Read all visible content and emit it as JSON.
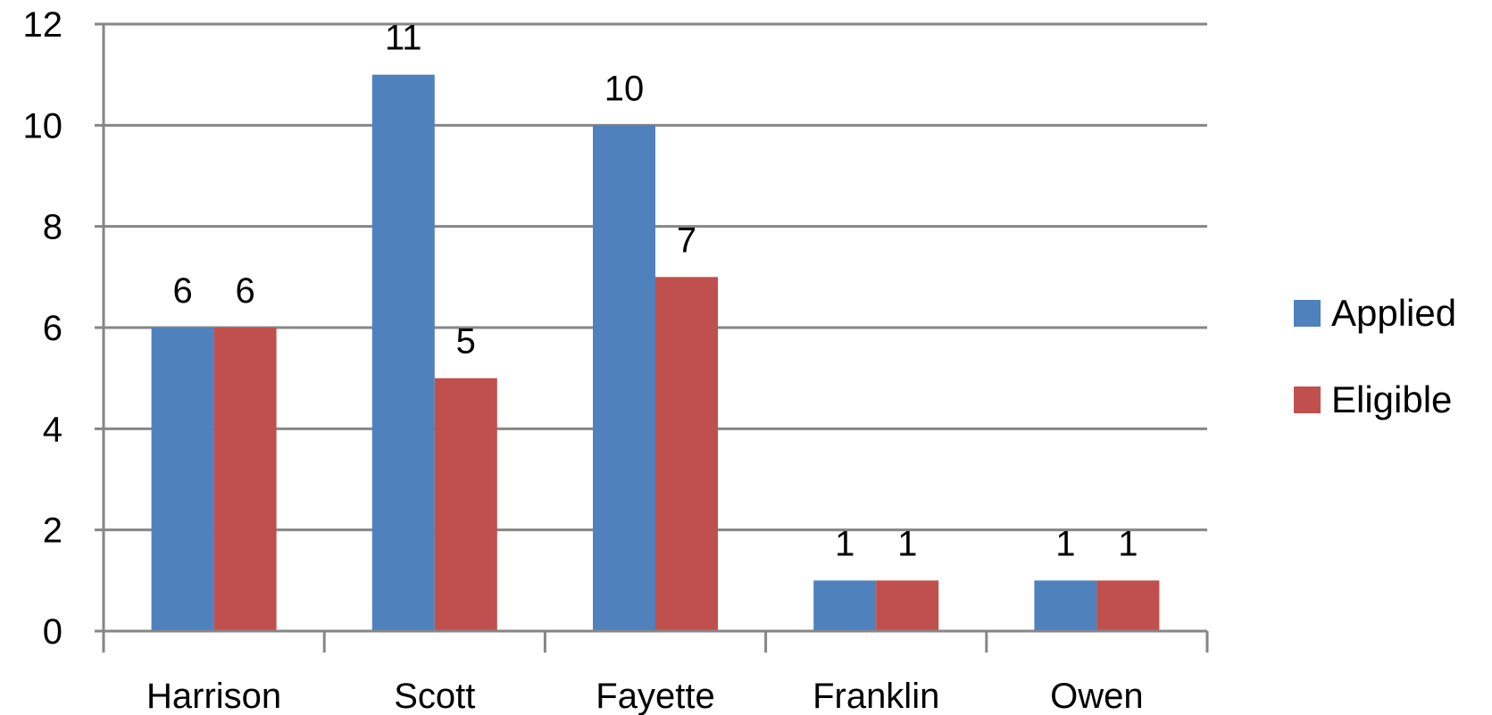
{
  "chart_data": {
    "type": "bar",
    "title": "",
    "xlabel": "",
    "ylabel": "",
    "categories": [
      "Harrison",
      "Scott",
      "Fayette",
      "Franklin",
      "Owen"
    ],
    "series": [
      {
        "name": "Applied",
        "values": [
          6,
          11,
          10,
          1,
          1
        ],
        "color": "#4F81BD"
      },
      {
        "name": "Eligible",
        "values": [
          6,
          5,
          7,
          1,
          1
        ],
        "color": "#C0504D"
      }
    ],
    "ylim": [
      0,
      12
    ],
    "yticks": [
      "0",
      "2",
      "4",
      "6",
      "8",
      "10",
      "12"
    ],
    "grid": true,
    "data_labels": true,
    "legend_position": "right"
  }
}
